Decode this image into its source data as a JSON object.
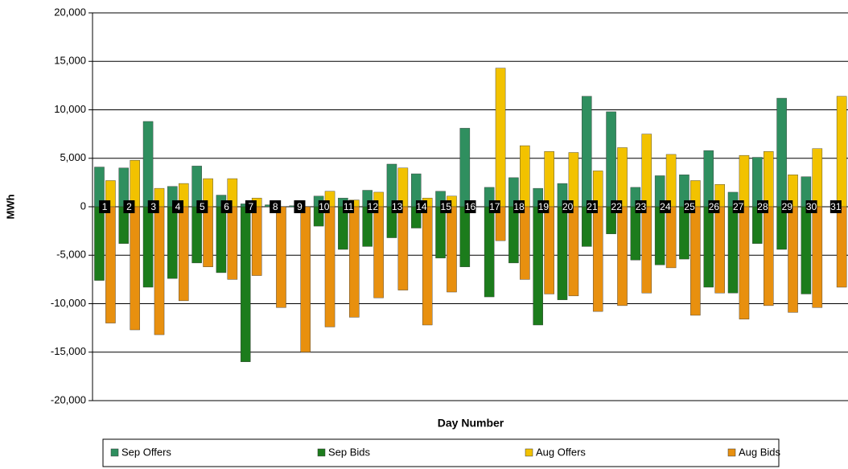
{
  "chart_data": {
    "type": "bar",
    "x_label": "Day Number",
    "y_label": "MWh",
    "categories": [
      "1",
      "2",
      "3",
      "4",
      "5",
      "6",
      "7",
      "8",
      "9",
      "10",
      "11",
      "12",
      "13",
      "14",
      "15",
      "16",
      "17",
      "18",
      "19",
      "20",
      "21",
      "22",
      "23",
      "24",
      "25",
      "26",
      "27",
      "28",
      "29",
      "30",
      "31"
    ],
    "series": [
      {
        "name": "Sep Offers",
        "color": "#2f8f5f",
        "slot": 0,
        "values": [
          4100,
          4000,
          8800,
          2100,
          4200,
          1200,
          300,
          200,
          100,
          1100,
          900,
          1700,
          4400,
          3400,
          1600,
          8100,
          2000,
          3000,
          1900,
          2400,
          11400,
          9800,
          2000,
          3200,
          3300,
          5800,
          1500,
          5100,
          11200,
          3100,
          null
        ]
      },
      {
        "name": "Sep Bids",
        "color": "#1c7c1c",
        "slot": 0,
        "values": [
          -7600,
          -3800,
          -8300,
          -7400,
          -5800,
          -6800,
          -16000,
          0,
          0,
          -2000,
          -4400,
          -4100,
          -3200,
          -2200,
          -5300,
          -6200,
          -9300,
          -5800,
          -12200,
          -9600,
          -4100,
          -2800,
          -5500,
          -6000,
          -5400,
          -8300,
          -8900,
          -3800,
          -4400,
          -9000,
          null
        ]
      },
      {
        "name": "Aug Offers",
        "color": "#f2c200",
        "slot": 1,
        "values": [
          2700,
          4800,
          1900,
          2400,
          2900,
          2900,
          900,
          0,
          0,
          1600,
          700,
          1500,
          4000,
          900,
          1100,
          null,
          14300,
          6300,
          5700,
          5600,
          3700,
          6100,
          7500,
          5400,
          2700,
          2300,
          5300,
          5700,
          3300,
          6000,
          11400
        ]
      },
      {
        "name": "Aug Bids",
        "color": "#e8900f",
        "slot": 1,
        "values": [
          -12000,
          -12700,
          -13200,
          -9700,
          -6200,
          -7500,
          -7100,
          -10400,
          -15000,
          -12400,
          -11400,
          -9400,
          -8600,
          -12200,
          -8800,
          null,
          -3500,
          -7500,
          -9000,
          -9200,
          -10800,
          -10200,
          -8900,
          -6300,
          -11200,
          -8900,
          -11600,
          -10200,
          -10900,
          -10400,
          -8300
        ]
      }
    ],
    "ylim": [
      -20000,
      20000
    ],
    "yticks": [
      {
        "value": -20000,
        "label": "-20,000"
      },
      {
        "value": -15000,
        "label": "-15,000"
      },
      {
        "value": -10000,
        "label": "-10,000"
      },
      {
        "value": -5000,
        "label": "-5,000"
      },
      0,
      {
        "value": 5000,
        "label": "5,000"
      },
      {
        "value": 10000,
        "label": "10,000"
      },
      {
        "value": 15000,
        "label": "15,000"
      },
      {
        "value": 20000,
        "label": "20,000"
      }
    ],
    "grid": true,
    "legend": "bottom"
  }
}
